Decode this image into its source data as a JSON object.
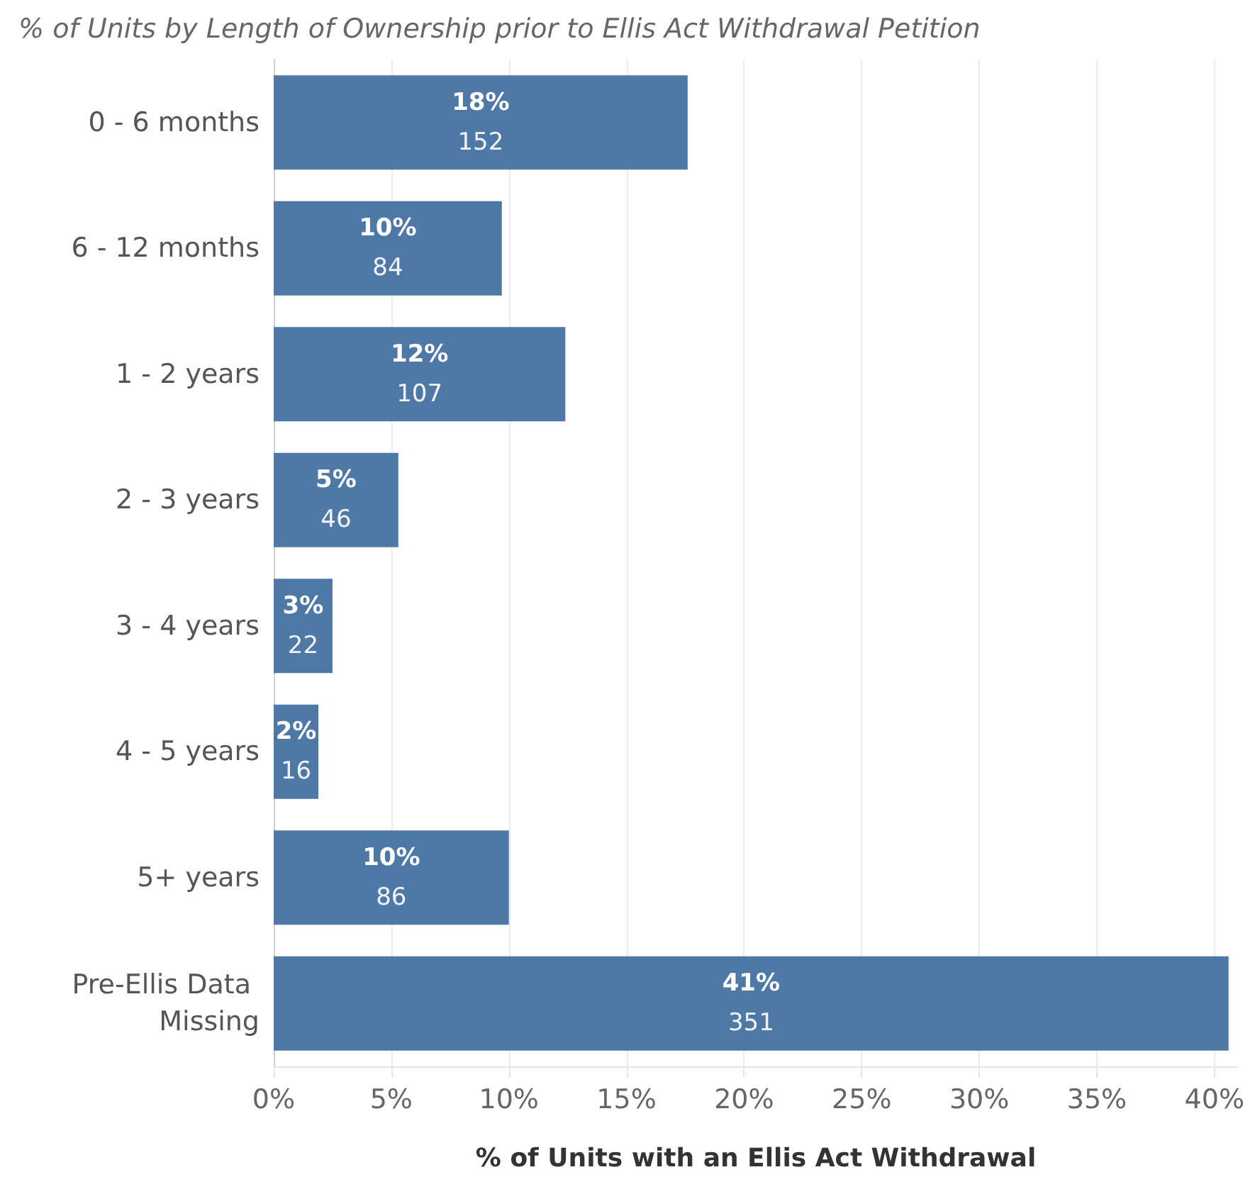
{
  "chart_data": {
    "type": "bar",
    "orientation": "horizontal",
    "title": "% of Units by Length of Ownership prior to Ellis Act Withdrawal Petition",
    "xlabel": "% of Units with an Ellis Act Withdrawal",
    "categories": [
      "0 - 6 months",
      "6 - 12 months",
      "1 - 2 years",
      "2 - 3 years",
      "3 - 4 years",
      "4 - 5 years",
      "5+ years",
      "Pre-Ellis Data Missing"
    ],
    "values": [
      17.6,
      9.7,
      12.4,
      5.3,
      2.5,
      1.9,
      10.0,
      40.6
    ],
    "value_labels": [
      "18%\n152",
      "10%\n84",
      "12%\n107",
      "5%\n46",
      "3%\n22",
      "2%\n16",
      "10%\n86",
      "41%\n351"
    ],
    "color": "#4e79a7",
    "xlim": [
      0,
      41
    ],
    "xticks": [
      {
        "value": 0,
        "label": "0%"
      },
      {
        "value": 5,
        "label": "5%"
      },
      {
        "value": 10,
        "label": "10%"
      },
      {
        "value": 15,
        "label": "15%"
      },
      {
        "value": 20,
        "label": "20%"
      },
      {
        "value": 25,
        "label": "25%"
      },
      {
        "value": 30,
        "label": "30%"
      },
      {
        "value": 35,
        "label": "35%"
      },
      {
        "value": 40,
        "label": "40%"
      }
    ],
    "grid": "x"
  }
}
